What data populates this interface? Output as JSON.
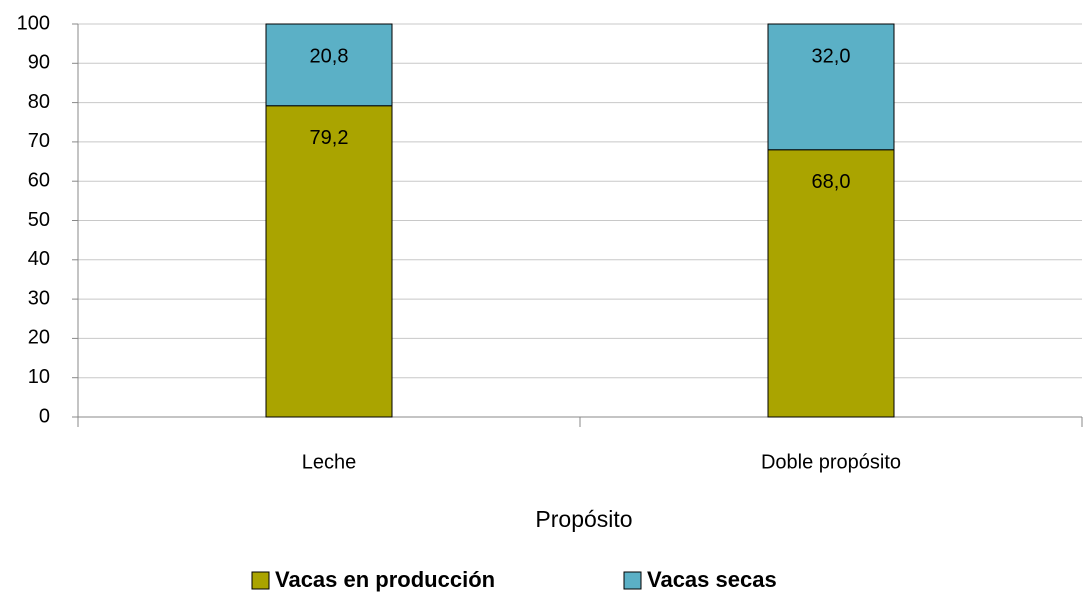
{
  "chart_data": {
    "type": "stacked_bar",
    "x_label": "Propósito",
    "categories": [
      "Leche",
      "Doble propósito"
    ],
    "series": [
      {
        "name": "Vacas en producción",
        "color": "#aaa400",
        "values": [
          79.2,
          68.0
        ],
        "value_labels": [
          "79,2",
          "68,0"
        ]
      },
      {
        "name": "Vacas secas",
        "color": "#5bb0c6",
        "values": [
          20.8,
          32.0
        ],
        "value_labels": [
          "20,8",
          "32,0"
        ]
      }
    ],
    "ylim": [
      0,
      100
    ],
    "yticks": [
      0,
      10,
      20,
      30,
      40,
      50,
      60,
      70,
      80,
      90,
      100
    ],
    "grid": true
  }
}
